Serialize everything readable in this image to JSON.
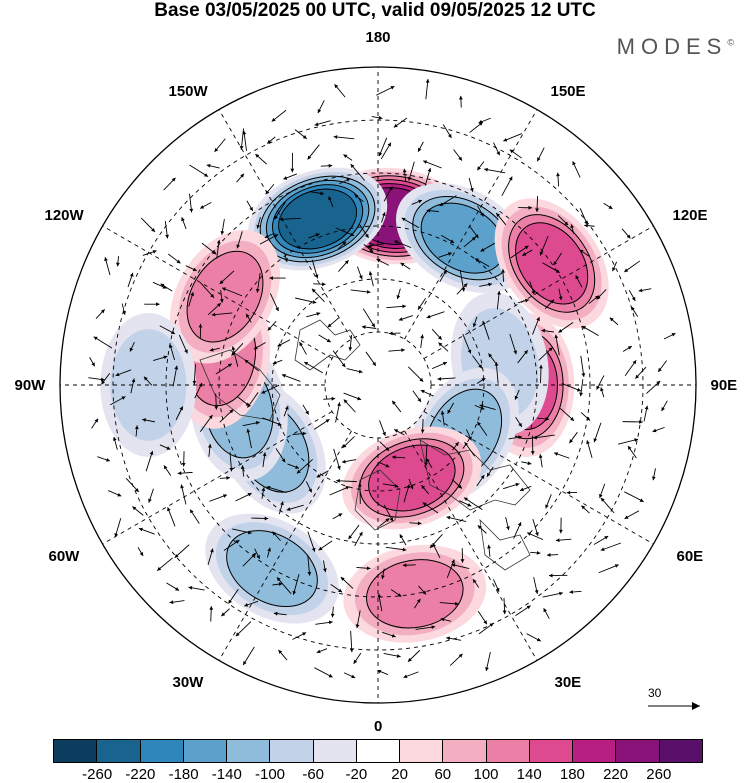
{
  "title": "Base 03/05/2025 00 UTC, valid 09/05/2025 12 UTC",
  "brand": "MODES",
  "brand_mark": "©",
  "lon_labels": [
    "180",
    "150E",
    "120E",
    "90E",
    "60E",
    "30E",
    "0",
    "30W",
    "60W",
    "90W",
    "120W",
    "150W"
  ],
  "colorbar": {
    "ticks": [
      "-260",
      "-220",
      "-180",
      "-140",
      "-100",
      "-60",
      "-20",
      "20",
      "60",
      "100",
      "140",
      "180",
      "220",
      "260"
    ],
    "colors": [
      "#0c3c5e",
      "#19638f",
      "#2f86ba",
      "#5ba1cc",
      "#90bcdb",
      "#c2d2e8",
      "#e4e4f0",
      "#ffffff",
      "#fbd9df",
      "#f3aec2",
      "#ec7fa5",
      "#dd4a90",
      "#b81f83",
      "#8a137a",
      "#5a0f6b"
    ]
  },
  "vector_reference": "30",
  "anomalies": [
    {
      "lon": 175,
      "lat": 42,
      "value": 240
    },
    {
      "lon": 150,
      "lat": 42,
      "value": -180
    },
    {
      "lon": 200,
      "lat": 40,
      "value": -260
    },
    {
      "lon": 125,
      "lat": 30,
      "value": 170
    },
    {
      "lon": 90,
      "lat": 48,
      "value": 160
    },
    {
      "lon": 100,
      "lat": 55,
      "value": -110
    },
    {
      "lon": 60,
      "lat": 62,
      "value": -120
    },
    {
      "lon": 20,
      "lat": 62,
      "value": 170
    },
    {
      "lon": 10,
      "lat": 30,
      "value": 120
    },
    {
      "lon": 330,
      "lat": 30,
      "value": -120
    },
    {
      "lon": 300,
      "lat": 55,
      "value": -140
    },
    {
      "lon": 280,
      "lat": 50,
      "value": -150
    },
    {
      "lon": 260,
      "lat": 45,
      "value": 140
    },
    {
      "lon": 240,
      "lat": 40,
      "value": 150
    },
    {
      "lon": 270,
      "lat": 25,
      "value": -110
    }
  ]
}
